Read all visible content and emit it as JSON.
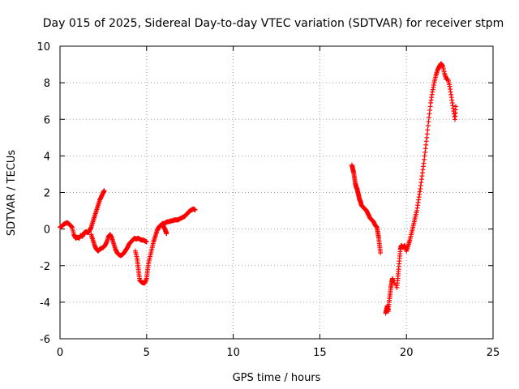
{
  "chart_data": {
    "type": "scatter",
    "title": "Day 015 of 2025, Sidereal Day-to-day VTEC variation (SDTVAR) for receiver stpm",
    "xlabel": "GPS time / hours",
    "ylabel": "SDTVAR / TECUs",
    "xlim": [
      0,
      25
    ],
    "ylim": [
      -6,
      10
    ],
    "x_ticks": [
      0,
      5,
      10,
      15,
      20,
      25
    ],
    "y_ticks": [
      -6,
      -4,
      -2,
      0,
      2,
      4,
      6,
      8,
      10
    ],
    "x_tick_labels": [
      "0",
      "5",
      "10",
      "15",
      "20",
      "25"
    ],
    "y_tick_labels": [
      "-6",
      "-4",
      "-2",
      "0",
      "2",
      "4",
      "6",
      "8",
      "10"
    ],
    "grid": true,
    "marker": "+",
    "color": "#ff0000",
    "series": [
      {
        "name": "SDTVAR",
        "segments": [
          [
            [
              0.0,
              0.1
            ],
            [
              0.1,
              0.15
            ],
            [
              0.2,
              0.25
            ],
            [
              0.3,
              0.3
            ],
            [
              0.4,
              0.35
            ],
            [
              0.5,
              0.3
            ],
            [
              0.6,
              0.2
            ],
            [
              0.7,
              0.1
            ],
            [
              0.8,
              -0.3
            ],
            [
              0.9,
              -0.5
            ],
            [
              1.0,
              -0.45
            ],
            [
              1.1,
              -0.5
            ],
            [
              1.2,
              -0.35
            ],
            [
              1.3,
              -0.4
            ],
            [
              1.4,
              -0.2
            ],
            [
              1.5,
              -0.15
            ],
            [
              1.6,
              -0.2
            ],
            [
              1.7,
              -0.1
            ],
            [
              1.8,
              0.1
            ],
            [
              1.9,
              0.4
            ],
            [
              2.0,
              0.7
            ],
            [
              2.1,
              1.0
            ],
            [
              2.2,
              1.3
            ],
            [
              2.3,
              1.6
            ],
            [
              2.4,
              1.8
            ],
            [
              2.5,
              2.0
            ],
            [
              2.55,
              2.1
            ],
            [
              1.8,
              -0.3
            ],
            [
              1.9,
              -0.6
            ],
            [
              2.0,
              -0.9
            ],
            [
              2.1,
              -1.1
            ],
            [
              2.2,
              -1.2
            ],
            [
              2.3,
              -1.1
            ],
            [
              2.4,
              -1.05
            ],
            [
              2.5,
              -1.0
            ],
            [
              2.6,
              -0.9
            ],
            [
              2.7,
              -0.7
            ],
            [
              2.8,
              -0.4
            ],
            [
              2.9,
              -0.3
            ],
            [
              3.0,
              -0.5
            ],
            [
              3.1,
              -0.8
            ],
            [
              3.2,
              -1.1
            ],
            [
              3.3,
              -1.3
            ],
            [
              3.4,
              -1.4
            ],
            [
              3.5,
              -1.45
            ],
            [
              3.6,
              -1.4
            ],
            [
              3.7,
              -1.3
            ],
            [
              3.8,
              -1.15
            ],
            [
              3.9,
              -1.0
            ],
            [
              4.0,
              -0.8
            ],
            [
              4.1,
              -0.7
            ],
            [
              4.2,
              -0.6
            ],
            [
              4.3,
              -0.5
            ],
            [
              4.4,
              -0.55
            ],
            [
              4.5,
              -0.5
            ],
            [
              4.6,
              -0.55
            ],
            [
              4.7,
              -0.6
            ],
            [
              4.8,
              -0.6
            ],
            [
              4.9,
              -0.65
            ],
            [
              5.0,
              -0.7
            ],
            [
              4.35,
              -1.2
            ],
            [
              4.45,
              -1.6
            ],
            [
              4.5,
              -2.0
            ],
            [
              4.55,
              -2.4
            ],
            [
              4.6,
              -2.8
            ],
            [
              4.7,
              -2.9
            ],
            [
              4.8,
              -2.95
            ],
            [
              4.9,
              -2.95
            ],
            [
              5.0,
              -2.7
            ],
            [
              5.05,
              -2.3
            ],
            [
              5.1,
              -1.9
            ],
            [
              5.2,
              -1.5
            ],
            [
              5.3,
              -1.1
            ],
            [
              5.4,
              -0.7
            ],
            [
              5.5,
              -0.4
            ],
            [
              5.6,
              -0.1
            ],
            [
              5.7,
              0.1
            ],
            [
              5.8,
              0.2
            ],
            [
              5.9,
              0.25
            ],
            [
              6.0,
              0.1
            ],
            [
              6.1,
              -0.1
            ],
            [
              6.15,
              -0.25
            ],
            [
              5.9,
              0.3
            ],
            [
              6.0,
              0.3
            ],
            [
              6.1,
              0.35
            ],
            [
              6.2,
              0.4
            ],
            [
              6.3,
              0.4
            ],
            [
              6.4,
              0.45
            ],
            [
              6.5,
              0.45
            ],
            [
              6.6,
              0.5
            ],
            [
              6.7,
              0.5
            ],
            [
              6.8,
              0.5
            ],
            [
              6.9,
              0.55
            ],
            [
              7.0,
              0.6
            ],
            [
              7.1,
              0.65
            ],
            [
              7.2,
              0.7
            ],
            [
              7.3,
              0.8
            ],
            [
              7.4,
              0.9
            ],
            [
              7.5,
              1.0
            ],
            [
              7.6,
              1.05
            ],
            [
              7.7,
              1.1
            ],
            [
              7.8,
              1.05
            ]
          ],
          [
            [
              16.85,
              3.5
            ],
            [
              16.9,
              3.3
            ],
            [
              16.95,
              3.1
            ],
            [
              17.0,
              2.8
            ],
            [
              17.05,
              2.5
            ],
            [
              17.1,
              2.3
            ],
            [
              17.15,
              2.2
            ],
            [
              17.2,
              2.0
            ],
            [
              17.25,
              1.8
            ],
            [
              17.3,
              1.6
            ],
            [
              17.35,
              1.5
            ],
            [
              17.4,
              1.3
            ],
            [
              17.5,
              1.2
            ],
            [
              17.6,
              1.1
            ],
            [
              17.7,
              1.0
            ],
            [
              17.8,
              0.8
            ],
            [
              17.9,
              0.6
            ],
            [
              18.0,
              0.5
            ],
            [
              18.1,
              0.4
            ],
            [
              18.2,
              0.2
            ],
            [
              18.3,
              0.1
            ],
            [
              18.35,
              -0.2
            ],
            [
              18.4,
              -0.5
            ],
            [
              18.45,
              -0.9
            ],
            [
              18.5,
              -1.3
            ]
          ],
          [
            [
              18.8,
              -4.6
            ],
            [
              18.85,
              -4.4
            ],
            [
              18.9,
              -4.2
            ],
            [
              18.95,
              -4.5
            ],
            [
              19.0,
              -4.0
            ],
            [
              19.05,
              -3.6
            ],
            [
              19.1,
              -3.2
            ],
            [
              19.15,
              -2.9
            ],
            [
              19.2,
              -2.7
            ],
            [
              19.45,
              -3.2
            ],
            [
              19.5,
              -2.7
            ],
            [
              19.55,
              -2.2
            ],
            [
              19.6,
              -1.6
            ],
            [
              19.65,
              -1.1
            ],
            [
              19.7,
              -0.9
            ],
            [
              19.8,
              -1.0
            ],
            [
              19.9,
              -0.9
            ],
            [
              20.0,
              -1.2
            ],
            [
              20.1,
              -0.9
            ],
            [
              20.2,
              -0.6
            ],
            [
              20.3,
              -0.2
            ],
            [
              20.4,
              0.2
            ],
            [
              20.5,
              0.6
            ],
            [
              20.6,
              1.0
            ],
            [
              20.7,
              1.6
            ],
            [
              20.8,
              2.2
            ],
            [
              20.9,
              2.9
            ],
            [
              21.0,
              3.6
            ],
            [
              21.1,
              4.4
            ],
            [
              21.2,
              5.2
            ],
            [
              21.3,
              6.1
            ],
            [
              21.4,
              6.9
            ],
            [
              21.5,
              7.5
            ],
            [
              21.6,
              8.0
            ],
            [
              21.7,
              8.4
            ],
            [
              21.8,
              8.7
            ],
            [
              21.9,
              8.9
            ],
            [
              22.0,
              9.05
            ],
            [
              22.1,
              8.9
            ],
            [
              22.2,
              8.5
            ],
            [
              22.3,
              8.2
            ],
            [
              22.4,
              8.2
            ],
            [
              22.5,
              7.8
            ],
            [
              22.6,
              7.2
            ],
            [
              22.7,
              6.6
            ],
            [
              22.8,
              6.0
            ],
            [
              22.85,
              6.7
            ]
          ]
        ]
      }
    ]
  }
}
